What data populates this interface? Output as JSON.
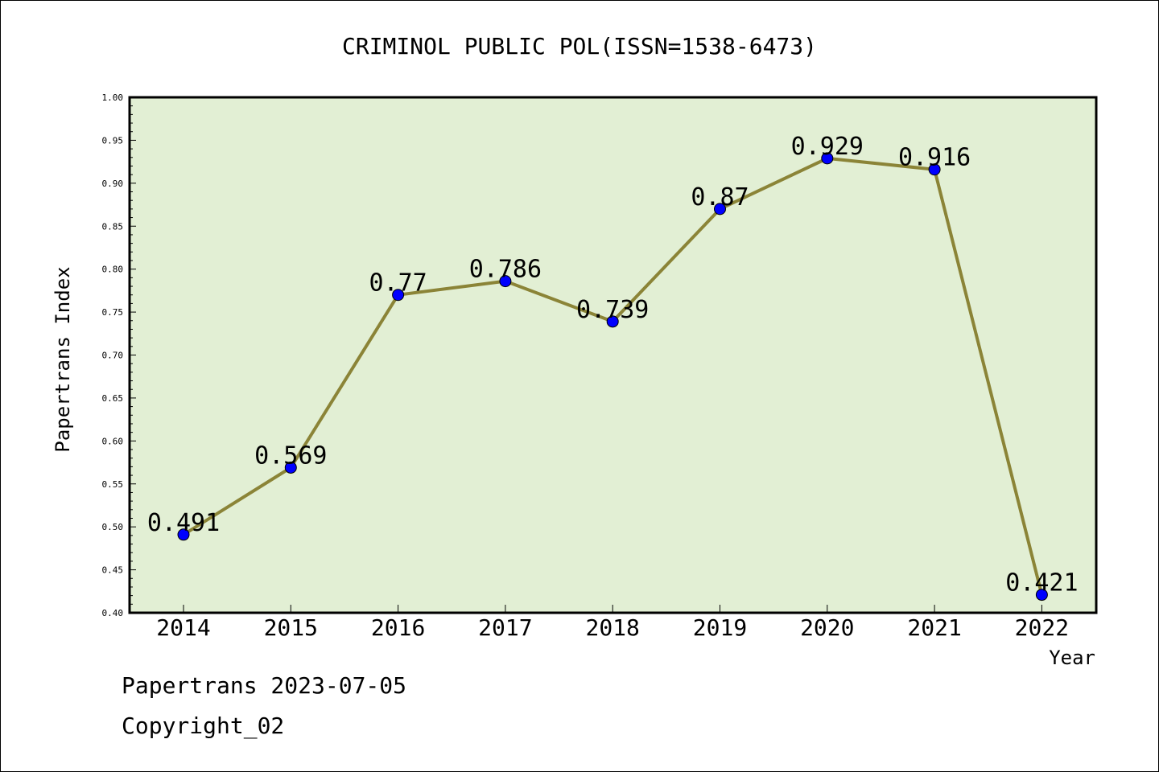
{
  "chart_data": {
    "type": "line",
    "title": "CRIMINOL PUBLIC POL(ISSN=1538-6473)",
    "xlabel": "Year",
    "ylabel": "Papertrans Index",
    "categories": [
      "2014",
      "2015",
      "2016",
      "2017",
      "2018",
      "2019",
      "2020",
      "2021",
      "2022"
    ],
    "series": [
      {
        "values": [
          0.491,
          0.569,
          0.77,
          0.786,
          0.739,
          0.87,
          0.929,
          0.916,
          0.421
        ],
        "data_labels": [
          "0.491",
          "0.569",
          "0.77",
          "0.786",
          "0.739",
          "0.87",
          "0.929",
          "0.916",
          "0.421"
        ]
      }
    ],
    "ylim": [
      0.4,
      1.0
    ],
    "yticks": [
      "0.40",
      "0.45",
      "0.50",
      "0.55",
      "0.60",
      "0.65",
      "0.70",
      "0.75",
      "0.80",
      "0.85",
      "0.90",
      "0.95",
      "1.00"
    ],
    "grid": false,
    "legend": "none"
  },
  "footer": {
    "line1": "Papertrans 2023-07-05",
    "line2": "Copyright_02"
  },
  "colors": {
    "plot_background": "#e2efd4",
    "line": "#8b8437",
    "marker": "#0000ff",
    "axis": "#000000"
  }
}
